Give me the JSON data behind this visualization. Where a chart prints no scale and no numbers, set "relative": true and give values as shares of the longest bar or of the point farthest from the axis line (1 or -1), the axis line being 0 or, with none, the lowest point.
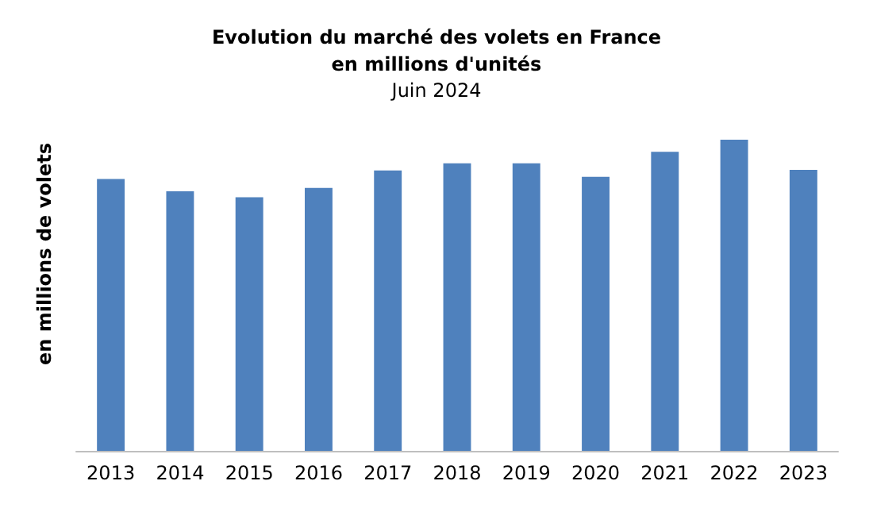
{
  "chart_data": {
    "type": "bar",
    "title": "Evolution du marché des volets en France\nen millions d'unités",
    "subtitle": "Juin 2024",
    "ylabel": "en millions de volets",
    "categories": [
      "2013",
      "2014",
      "2015",
      "2016",
      "2017",
      "2018",
      "2019",
      "2020",
      "2021",
      "2022",
      "2023"
    ],
    "values": [
      0.874,
      0.834,
      0.815,
      0.845,
      0.901,
      0.924,
      0.924,
      0.881,
      0.961,
      1,
      0.903
    ],
    "color": "#4f81bd",
    "relative": true
  }
}
